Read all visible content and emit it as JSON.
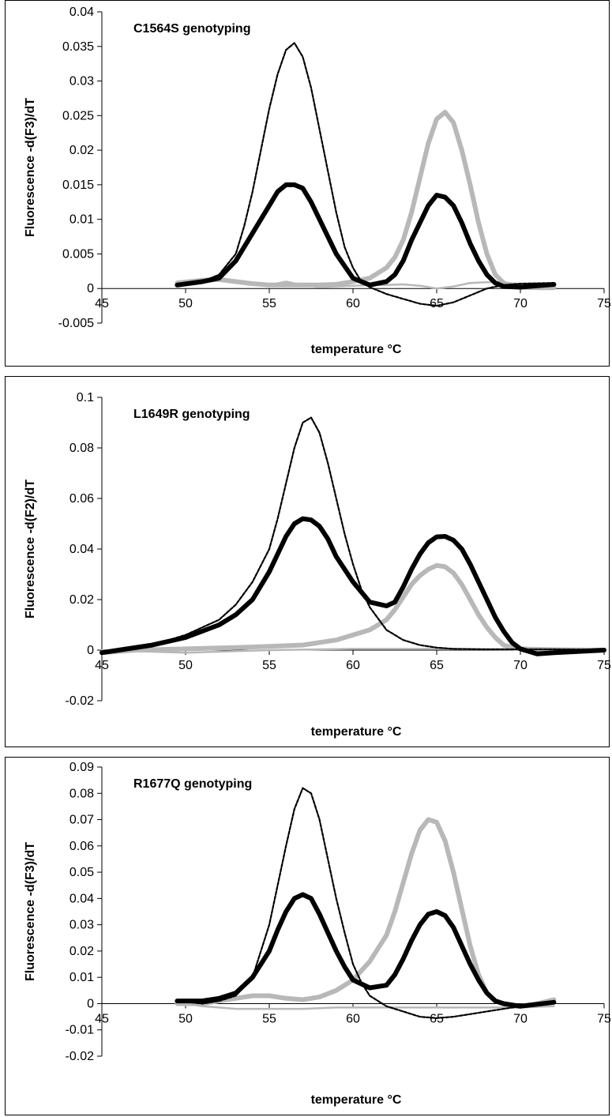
{
  "chart_data": [
    {
      "type": "line",
      "title": "C1564S genotyping",
      "xlabel": "temperature  °C",
      "ylabel": "Fluorescence -d(F3)/dT",
      "xlim": [
        45,
        75
      ],
      "ylim": [
        -0.005,
        0.04
      ],
      "xticks": [
        "45",
        "50",
        "55",
        "60",
        "65",
        "70",
        "75"
      ],
      "yticks": [
        "-0.005",
        "0",
        "0.005",
        "0.01",
        "0.015",
        "0.02",
        "0.025",
        "0.03",
        "0.035",
        "0.04"
      ],
      "grid": false,
      "legend": "none",
      "series": [
        {
          "style": "dashed-black",
          "x": [
            49.5,
            51,
            52,
            53,
            53.5,
            54,
            54.5,
            55,
            55.5,
            56,
            56.5,
            57,
            57.5,
            58,
            58.5,
            59,
            59.5,
            60,
            60.5,
            61,
            61.5,
            62,
            63,
            64,
            65,
            66,
            67,
            68,
            69,
            70,
            72
          ],
          "y": [
            0.0005,
            0.001,
            0.002,
            0.005,
            0.009,
            0.014,
            0.02,
            0.026,
            0.031,
            0.0345,
            0.0355,
            0.0335,
            0.029,
            0.023,
            0.017,
            0.011,
            0.006,
            0.003,
            0.001,
            0.0002,
            -0.0003,
            -0.0008,
            -0.0015,
            -0.0022,
            -0.0025,
            -0.002,
            -0.001,
            0.0,
            0.0005,
            0.0007,
            0.0008
          ]
        },
        {
          "style": "thick-black",
          "x": [
            49.5,
            51,
            52,
            53,
            54,
            55,
            55.5,
            56,
            56.5,
            57,
            57.5,
            58,
            58.5,
            59,
            60,
            61,
            62,
            62.5,
            63,
            63.5,
            64,
            64.5,
            65,
            65.5,
            66,
            66.5,
            67,
            67.5,
            68,
            68.5,
            69,
            70,
            72
          ],
          "y": [
            0.0005,
            0.001,
            0.0015,
            0.004,
            0.008,
            0.012,
            0.014,
            0.015,
            0.015,
            0.0145,
            0.0125,
            0.01,
            0.0075,
            0.005,
            0.0015,
            0.0005,
            0.001,
            0.002,
            0.004,
            0.007,
            0.0095,
            0.012,
            0.0135,
            0.0132,
            0.012,
            0.0095,
            0.0065,
            0.004,
            0.002,
            0.0008,
            0.0003,
            0.0002,
            0.0006
          ]
        },
        {
          "style": "thick-gray",
          "x": [
            49.5,
            51,
            52,
            53,
            54,
            55,
            56,
            57,
            58,
            59,
            60,
            61,
            62,
            62.5,
            63,
            63.5,
            64,
            64.5,
            65,
            65.5,
            66,
            66.5,
            67,
            67.5,
            68,
            68.5,
            69,
            69.5,
            70,
            71,
            72
          ],
          "y": [
            0.0008,
            0.0012,
            0.0013,
            0.001,
            0.0007,
            0.0005,
            0.0005,
            0.0005,
            0.0005,
            0.0006,
            0.001,
            0.0015,
            0.003,
            0.0045,
            0.007,
            0.011,
            0.016,
            0.021,
            0.0245,
            0.0255,
            0.024,
            0.02,
            0.015,
            0.0095,
            0.005,
            0.002,
            0.0008,
            0.0003,
            0.0002,
            0.0001,
            0.0001
          ]
        },
        {
          "style": "thin-gray",
          "x": [
            49.5,
            51,
            52,
            53,
            54,
            55,
            56,
            57,
            58,
            59,
            60,
            61,
            62,
            63,
            64,
            65,
            66,
            67,
            68,
            69,
            70,
            72
          ],
          "y": [
            0.0003,
            0.0008,
            0.0012,
            0.001,
            0.0005,
            0.0005,
            0.001,
            0.0005,
            0.0002,
            0.0003,
            0.0004,
            0.0005,
            0.0005,
            0.0006,
            0.0004,
            0.0,
            0.0003,
            0.0008,
            0.0009,
            0.0009,
            0.0006,
            0.0004
          ]
        }
      ]
    },
    {
      "type": "line",
      "title": "L1649R genotyping",
      "xlabel": "temperature  °C",
      "ylabel": "Fluorescence -d(F2)/dT",
      "xlim": [
        45,
        75
      ],
      "ylim": [
        -0.02,
        0.1
      ],
      "xticks": [
        "45",
        "50",
        "55",
        "60",
        "65",
        "70",
        "75"
      ],
      "yticks": [
        "-0.02",
        "0",
        "0.02",
        "0.04",
        "0.06",
        "0.08",
        "0.1"
      ],
      "grid": false,
      "legend": "none",
      "series": [
        {
          "style": "dashed-black",
          "x": [
            45,
            46,
            48,
            50,
            52,
            53,
            54,
            55,
            55.5,
            56,
            56.5,
            57,
            57.5,
            58,
            58.5,
            59,
            59.5,
            60,
            60.5,
            61,
            62,
            63,
            64,
            65,
            66,
            68,
            70,
            72,
            75
          ],
          "y": [
            -0.001,
            0.0,
            0.002,
            0.006,
            0.012,
            0.018,
            0.027,
            0.04,
            0.052,
            0.066,
            0.08,
            0.09,
            0.092,
            0.086,
            0.074,
            0.06,
            0.046,
            0.034,
            0.024,
            0.017,
            0.008,
            0.004,
            0.002,
            0.001,
            0.0005,
            0.0003,
            0.0003,
            0.0003,
            0.0002
          ]
        },
        {
          "style": "thick-black",
          "x": [
            45,
            46,
            48,
            50,
            52,
            53,
            54,
            55,
            55.5,
            56,
            56.5,
            57,
            57.5,
            58,
            58.5,
            59,
            60,
            61,
            62,
            62.5,
            63,
            63.5,
            64,
            64.5,
            65,
            65.5,
            66,
            66.5,
            67,
            67.5,
            68,
            68.5,
            69,
            69.5,
            70,
            71,
            72,
            75
          ],
          "y": [
            -0.001,
            0.0,
            0.002,
            0.005,
            0.01,
            0.014,
            0.02,
            0.031,
            0.038,
            0.045,
            0.05,
            0.052,
            0.0515,
            0.049,
            0.044,
            0.037,
            0.027,
            0.019,
            0.0175,
            0.019,
            0.025,
            0.032,
            0.038,
            0.0425,
            0.0448,
            0.045,
            0.0435,
            0.04,
            0.034,
            0.027,
            0.02,
            0.013,
            0.0075,
            0.003,
            0.0005,
            -0.0015,
            -0.001,
            0.0
          ]
        },
        {
          "style": "thick-gray",
          "x": [
            45,
            47,
            50,
            53,
            55,
            57,
            58,
            59,
            60,
            61,
            62,
            62.5,
            63,
            63.5,
            64,
            64.5,
            65,
            65.5,
            66,
            66.5,
            67,
            67.5,
            68,
            68.5,
            69,
            69.5,
            70,
            71,
            72,
            75
          ],
          "y": [
            -0.001,
            0.0,
            0.0005,
            0.001,
            0.0015,
            0.002,
            0.003,
            0.004,
            0.006,
            0.008,
            0.012,
            0.016,
            0.021,
            0.026,
            0.0295,
            0.032,
            0.0335,
            0.033,
            0.0305,
            0.026,
            0.02,
            0.014,
            0.009,
            0.005,
            0.002,
            0.001,
            0.0005,
            0.0003,
            0.0002,
            0.0
          ]
        },
        {
          "style": "thin-gray",
          "x": [
            45,
            50,
            55,
            60,
            65,
            70,
            75
          ],
          "y": [
            0.0,
            -0.001,
            0.0,
            0.0005,
            0.0005,
            0.0003,
            0.0002
          ]
        }
      ]
    },
    {
      "type": "line",
      "title": "R1677Q genotyping",
      "xlabel": "temperature  °C",
      "ylabel": "Fluorescence -d(F3)/dT",
      "xlim": [
        45,
        75
      ],
      "ylim": [
        -0.02,
        0.09
      ],
      "xticks": [
        "45",
        "50",
        "55",
        "60",
        "65",
        "70",
        "75"
      ],
      "yticks": [
        "-0.02",
        "-0.01",
        "0",
        "0.01",
        "0.02",
        "0.03",
        "0.04",
        "0.05",
        "0.06",
        "0.07",
        "0.08",
        "0.09"
      ],
      "grid": false,
      "legend": "none",
      "series": [
        {
          "style": "dashed-black",
          "x": [
            49.5,
            51,
            52,
            53,
            54,
            55,
            55.5,
            56,
            56.5,
            57,
            57.5,
            58,
            58.5,
            59,
            59.5,
            60,
            60.5,
            61,
            62,
            63,
            64,
            65,
            66,
            67,
            68,
            69,
            70,
            72
          ],
          "y": [
            0.001,
            0.0,
            0.001,
            0.003,
            0.01,
            0.03,
            0.045,
            0.06,
            0.074,
            0.082,
            0.08,
            0.07,
            0.055,
            0.04,
            0.027,
            0.015,
            0.008,
            0.003,
            -0.001,
            -0.003,
            -0.005,
            -0.0055,
            -0.005,
            -0.004,
            -0.003,
            -0.002,
            -0.001,
            0.0
          ]
        },
        {
          "style": "thick-black",
          "x": [
            49.5,
            51,
            52,
            53,
            54,
            55,
            55.5,
            56,
            56.5,
            57,
            57.5,
            58,
            58.5,
            59,
            59.5,
            60,
            61,
            62,
            62.5,
            63,
            63.5,
            64,
            64.5,
            65,
            65.5,
            66,
            66.5,
            67,
            67.5,
            68,
            68.5,
            69,
            70,
            72
          ],
          "y": [
            0.001,
            0.001,
            0.002,
            0.004,
            0.01,
            0.02,
            0.028,
            0.035,
            0.04,
            0.0415,
            0.04,
            0.034,
            0.027,
            0.02,
            0.014,
            0.009,
            0.006,
            0.007,
            0.011,
            0.017,
            0.024,
            0.03,
            0.034,
            0.035,
            0.0335,
            0.029,
            0.022,
            0.015,
            0.009,
            0.004,
            0.001,
            0.0,
            -0.001,
            0.0005
          ]
        },
        {
          "style": "thick-gray",
          "x": [
            49.5,
            51,
            52,
            53,
            54,
            55,
            56,
            57,
            58,
            59,
            60,
            61,
            62,
            62.5,
            63,
            63.5,
            64,
            64.5,
            65,
            65.5,
            66,
            66.5,
            67,
            67.5,
            68,
            68.5,
            69,
            69.5,
            70,
            71,
            72
          ],
          "y": [
            0.0,
            0.0,
            0.001,
            0.002,
            0.003,
            0.003,
            0.002,
            0.0015,
            0.0025,
            0.005,
            0.009,
            0.016,
            0.026,
            0.035,
            0.046,
            0.057,
            0.066,
            0.07,
            0.069,
            0.062,
            0.05,
            0.036,
            0.022,
            0.011,
            0.004,
            0.001,
            0.0,
            -0.001,
            -0.001,
            0.0,
            0.0015
          ]
        },
        {
          "style": "thin-gray",
          "x": [
            49.5,
            51,
            52,
            53,
            55,
            57,
            59,
            61,
            63,
            65,
            67,
            69,
            70,
            72
          ],
          "y": [
            0.0005,
            -0.001,
            -0.0015,
            -0.002,
            -0.002,
            -0.002,
            -0.0015,
            -0.0015,
            -0.0015,
            -0.0015,
            -0.0015,
            -0.0015,
            -0.0015,
            -0.001
          ]
        }
      ]
    }
  ]
}
